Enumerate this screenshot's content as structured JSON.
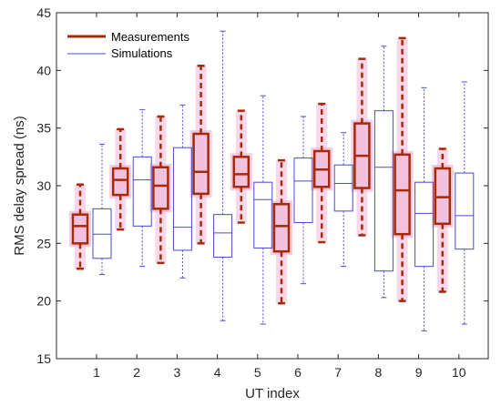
{
  "chart_data": {
    "type": "box",
    "xlabel": "UT index",
    "ylabel": "RMS delay spread (ns)",
    "categories": [
      "1",
      "2",
      "3",
      "4",
      "5",
      "6",
      "7",
      "8",
      "9",
      "10"
    ],
    "ylim": [
      15,
      45
    ],
    "yticks": [
      15,
      20,
      25,
      30,
      35,
      40,
      45
    ],
    "grid": false,
    "legend": "top-left",
    "series": [
      {
        "name": "Measurements",
        "color": "#a52a0a",
        "highlight": "#f0b8d8",
        "boxes": [
          {
            "min": 22.8,
            "q1": 25.0,
            "median": 26.5,
            "q3": 27.5,
            "max": 30.1
          },
          {
            "min": 26.2,
            "q1": 29.2,
            "median": 30.5,
            "q3": 31.5,
            "max": 34.9
          },
          {
            "min": 23.3,
            "q1": 28.0,
            "median": 30.0,
            "q3": 31.6,
            "max": 36.0
          },
          {
            "min": 25.0,
            "q1": 29.3,
            "median": 31.2,
            "q3": 34.5,
            "max": 40.4
          },
          {
            "min": 26.8,
            "q1": 29.9,
            "median": 31.0,
            "q3": 32.5,
            "max": 36.5
          },
          {
            "min": 19.8,
            "q1": 24.3,
            "median": 26.5,
            "q3": 28.4,
            "max": 32.2
          },
          {
            "min": 25.1,
            "q1": 29.9,
            "median": 31.4,
            "q3": 33.0,
            "max": 37.1
          },
          {
            "min": 25.7,
            "q1": 29.8,
            "median": 32.6,
            "q3": 35.4,
            "max": 41.0
          },
          {
            "min": 20.0,
            "q1": 25.8,
            "median": 29.6,
            "q3": 32.7,
            "max": 42.8
          },
          {
            "min": 20.8,
            "q1": 26.7,
            "median": 29.0,
            "q3": 31.5,
            "max": 33.2
          }
        ]
      },
      {
        "name": "Simulations",
        "color": "#4a4acc",
        "boxes": [
          {
            "min": 22.3,
            "q1": 23.7,
            "median": 25.8,
            "q3": 28.0,
            "max": 33.6
          },
          {
            "min": 23.0,
            "q1": 26.5,
            "median": 30.5,
            "q3": 32.5,
            "max": 36.6
          },
          {
            "min": 22.0,
            "q1": 24.4,
            "median": 26.4,
            "q3": 33.3,
            "max": 37.0
          },
          {
            "min": 18.3,
            "q1": 23.8,
            "median": 25.9,
            "q3": 27.5,
            "max": 43.4
          },
          {
            "min": 18.0,
            "q1": 24.6,
            "median": 28.8,
            "q3": 30.3,
            "max": 37.8
          },
          {
            "min": 21.5,
            "q1": 26.8,
            "median": 30.4,
            "q3": 32.4,
            "max": 36.0
          },
          {
            "min": 23.0,
            "q1": 27.8,
            "median": 30.2,
            "q3": 31.8,
            "max": 34.6
          },
          {
            "min": 20.3,
            "q1": 22.6,
            "median": 31.6,
            "q3": 36.5,
            "max": 42.1
          },
          {
            "min": 17.4,
            "q1": 23.0,
            "median": 27.6,
            "q3": 30.3,
            "max": 38.5
          },
          {
            "min": 18.0,
            "q1": 24.5,
            "median": 27.4,
            "q3": 31.1,
            "max": 39.0
          }
        ]
      }
    ]
  }
}
